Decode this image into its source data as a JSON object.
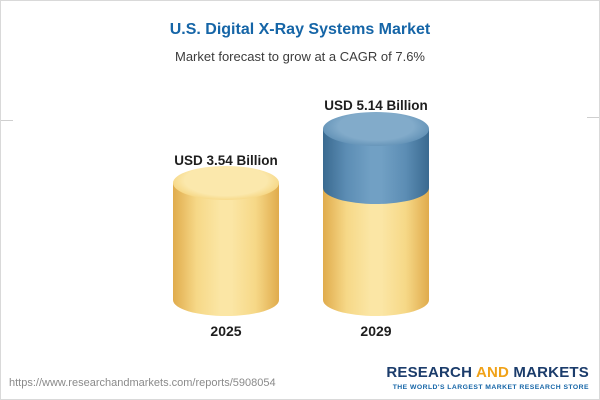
{
  "header": {
    "title": "U.S. Digital X-Ray Systems Market",
    "subtitle": "Market forecast to grow at a CAGR of 7.6%"
  },
  "chart_data": {
    "type": "bar",
    "categories": [
      "2025",
      "2029"
    ],
    "values": [
      3.54,
      5.14
    ],
    "unit": "USD Billion",
    "value_labels": [
      "USD 3.54 Billion",
      "USD 5.14 Billion"
    ],
    "title": "U.S. Digital X-Ray Systems Market",
    "subtitle": "Market forecast to grow at a CAGR of 7.6%",
    "ylim": [
      0,
      5.14
    ],
    "grid": false,
    "legend": "none",
    "colors": {
      "bar_2025": "#f3cd6e",
      "bar_2029_base": "#f3cd6e",
      "bar_2029_growth": "#5c8db4",
      "title": "#1565a7"
    }
  },
  "footer": {
    "url": "https://www.researchandmarkets.com/reports/5908054",
    "logo": {
      "part1": "RESEARCH",
      "part2": "AND",
      "part3": "MARKETS",
      "tagline": "THE WORLD'S LARGEST MARKET RESEARCH STORE"
    }
  }
}
